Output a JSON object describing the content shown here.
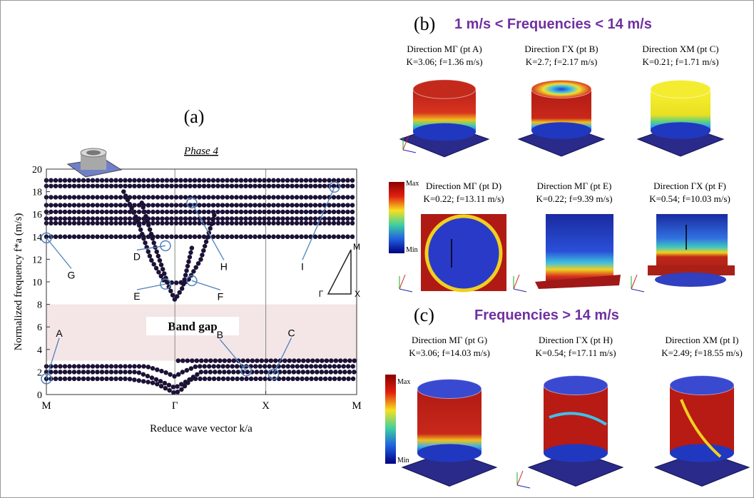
{
  "chart_data": {
    "type": "line",
    "title": "(a)",
    "subtitle": "Phase 4",
    "x_label": "Reduce wave vector k/a",
    "y_label": "Normalized frequency  f*a (m/s)",
    "xlim": [
      0,
      3.414
    ],
    "ylim": [
      0,
      20
    ],
    "xticks": [
      {
        "value": 0,
        "label": "M"
      },
      {
        "value": 1.414,
        "label": "Γ"
      },
      {
        "value": 2.414,
        "label": "X"
      },
      {
        "value": 3.414,
        "label": "M"
      }
    ],
    "yticks": [
      0,
      2,
      4,
      6,
      8,
      10,
      12,
      14,
      16,
      18,
      20
    ],
    "x_grid": true,
    "band_gap": [
      3,
      8
    ],
    "band_gap_label": "Band gap",
    "inset_labels": [
      "Γ",
      "X",
      "M"
    ],
    "series": [
      {
        "color": "#1c1236",
        "x": [
          0,
          0.9,
          1.2,
          1.35,
          1.414,
          1.48,
          1.6,
          2.414,
          3.414
        ],
        "values": [
          1.4,
          1.4,
          1.0,
          0.4,
          0.1,
          0.4,
          1.4,
          1.4,
          1.4
        ]
      },
      {
        "color": "#1c1236",
        "x": [
          0,
          1.0,
          1.25,
          1.414,
          1.55,
          1.7,
          2.414,
          3.414
        ],
        "values": [
          2.0,
          2.0,
          1.2,
          0.6,
          1.2,
          2.0,
          2.0,
          2.0
        ]
      },
      {
        "color": "#1c1236",
        "x": [
          0,
          1.1,
          1.3,
          1.414,
          1.5,
          1.65,
          2.414,
          3.414
        ],
        "values": [
          2.5,
          2.5,
          2.0,
          1.6,
          2.0,
          2.5,
          2.5,
          2.5
        ]
      },
      {
        "color": "#1c1236",
        "x": [
          1.45,
          2.414,
          3.414
        ],
        "values": [
          3.0,
          3.0,
          3.0
        ]
      },
      {
        "color": "#1c1236",
        "x": [
          0,
          1.2,
          1.6,
          2.414,
          3.414
        ],
        "values": [
          14.0,
          14.0,
          14.0,
          14.0,
          14.0
        ]
      },
      {
        "color": "#1c1236",
        "x": [
          0,
          1.414,
          3.414
        ],
        "values": [
          15.2,
          15.2,
          15.2
        ]
      },
      {
        "color": "#1c1236",
        "x": [
          0,
          1.414,
          3.414
        ],
        "values": [
          15.6,
          15.6,
          15.6
        ]
      },
      {
        "color": "#1c1236",
        "x": [
          0,
          1.414,
          3.414
        ],
        "values": [
          16.2,
          16.2,
          16.2
        ]
      },
      {
        "color": "#1c1236",
        "x": [
          0,
          1.414,
          3.414
        ],
        "values": [
          16.8,
          16.8,
          16.8
        ]
      },
      {
        "color": "#1c1236",
        "x": [
          0,
          1.414,
          3.414
        ],
        "values": [
          17.5,
          17.5,
          17.5
        ]
      },
      {
        "color": "#1c1236",
        "x": [
          0,
          0.3,
          2.414,
          3.414
        ],
        "values": [
          18.5,
          18.5,
          18.5,
          18.5
        ]
      },
      {
        "color": "#1c1236",
        "x": [
          0,
          0.3,
          2.414,
          3.414
        ],
        "values": [
          19.0,
          19.0,
          19.0,
          19.0
        ]
      },
      {
        "color": "#1c1236",
        "x": [
          0.85,
          1.0,
          1.15,
          1.3,
          1.414,
          1.55,
          1.7,
          1.85
        ],
        "values": [
          18.0,
          15.5,
          12.0,
          10.0,
          9.9,
          10.0,
          12.0,
          16.0
        ]
      },
      {
        "color": "#1c1236",
        "x": [
          1.05,
          1.2,
          1.35,
          1.414,
          1.5,
          1.6
        ],
        "values": [
          17.0,
          13.0,
          9.5,
          8.4,
          9.5,
          13.0
        ]
      }
    ],
    "points": [
      {
        "label": "A",
        "x": 0,
        "y": 1.4
      },
      {
        "label": "B",
        "x": 2.2,
        "y": 2.1
      },
      {
        "label": "C",
        "x": 2.5,
        "y": 1.8
      },
      {
        "label": "D",
        "x": 1.31,
        "y": 13.2
      },
      {
        "label": "E",
        "x": 1.31,
        "y": 9.8
      },
      {
        "label": "F",
        "x": 1.6,
        "y": 10.1
      },
      {
        "label": "G",
        "x": 0,
        "y": 13.9
      },
      {
        "label": "H",
        "x": 1.6,
        "y": 17.0
      },
      {
        "label": "I",
        "x": 3.17,
        "y": 18.4
      }
    ]
  },
  "panel_b": {
    "label": "(b)",
    "title": "1 m/s  < Frequencies <  14 m/s",
    "items": [
      {
        "direction": "Direction MΓ (pt A)",
        "params": "K=3.06; f=1.36 m/s)"
      },
      {
        "direction": "Direction ΓX (pt B)",
        "params": "K=2.7; f=2.17 m/s)"
      },
      {
        "direction": "Direction XM (pt C)",
        "params": "K=0.21; f=1.71 m/s)"
      },
      {
        "direction": "Direction MΓ (pt D)",
        "params": "K=0.22; f=13.11 m/s)"
      },
      {
        "direction": "Direction MΓ (pt E)",
        "params": "K=0.22; f=9.39 m/s)"
      },
      {
        "direction": "Direction ΓX (pt F)",
        "params": "K=0.54; f=10.03 m/s)"
      }
    ],
    "colorbar": {
      "max": "Max",
      "min": "Min"
    }
  },
  "panel_c": {
    "label": "(c)",
    "title": "Frequencies > 14 m/s",
    "items": [
      {
        "direction": "Direction MΓ (pt G)",
        "params": "K=3.06; f=14.03 m/s)"
      },
      {
        "direction": "Direction ΓX (pt H)",
        "params": "K=0.54; f=17.11 m/s)"
      },
      {
        "direction": "Direction XM (pt I)",
        "params": "K=2.49; f=18.55 m/s)"
      }
    ],
    "colorbar": {
      "max": "Max",
      "min": "Min"
    }
  }
}
